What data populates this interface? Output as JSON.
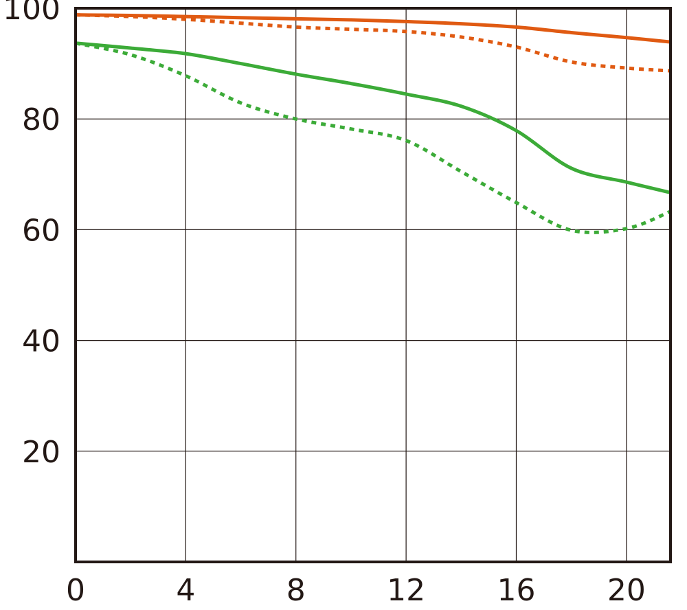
{
  "chart_data": {
    "type": "line",
    "x": [
      0,
      2,
      4,
      6,
      8,
      10,
      12,
      14,
      16,
      18,
      20,
      21.6
    ],
    "series": [
      {
        "color": "#e05a12",
        "style": "solid",
        "values": [
          98.8,
          98.7,
          98.5,
          98.3,
          98.1,
          97.9,
          97.6,
          97.2,
          96.6,
          95.6,
          94.7,
          93.9
        ]
      },
      {
        "color": "#e05a12",
        "style": "dotted",
        "values": [
          98.8,
          98.5,
          98.0,
          97.3,
          96.6,
          96.2,
          95.8,
          94.8,
          93.0,
          90.3,
          89.2,
          88.7
        ]
      },
      {
        "color": "#3cab38",
        "style": "solid",
        "values": [
          93.7,
          92.8,
          91.8,
          90.0,
          88.1,
          86.4,
          84.5,
          82.3,
          77.9,
          71.1,
          68.6,
          66.7
        ]
      },
      {
        "color": "#3cab38",
        "style": "dotted",
        "values": [
          93.7,
          91.6,
          87.8,
          82.9,
          80.0,
          78.2,
          76.1,
          70.5,
          64.9,
          59.9,
          60.2,
          63.3
        ]
      }
    ],
    "xlim": [
      0,
      21.6
    ],
    "ylim": [
      0,
      100
    ],
    "xticks": [
      0,
      4,
      8,
      12,
      16,
      20
    ],
    "yticks": [
      20,
      40,
      60,
      80,
      100
    ],
    "grid": true
  }
}
